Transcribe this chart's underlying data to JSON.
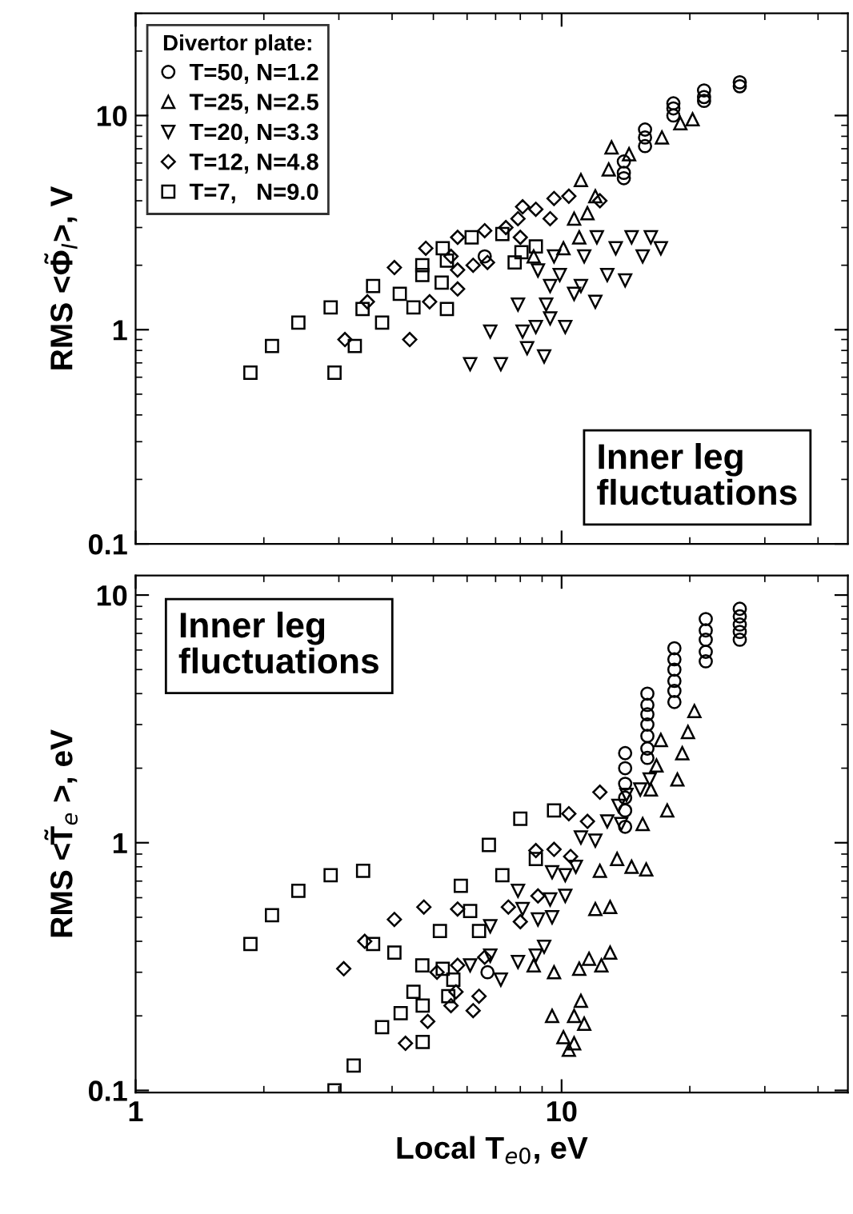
{
  "chart_data": [
    {
      "type": "scatter",
      "ylabel": "RMS <Φ̃$_{I}$>, V",
      "legend_title": "Divertor plate:",
      "legend": "top left",
      "log": "xy",
      "xlim": [
        1,
        47
      ],
      "xticks": [
        1,
        10
      ],
      "ylim": [
        0.1,
        30
      ],
      "yticks": [
        0.1,
        1,
        10
      ],
      "tick_labels": "y",
      "annotations": [
        "Inner leg\nfluctuations"
      ],
      "series": [
        {
          "name": "T=50, N=1.2",
          "color": "#000000",
          "marker": "circle",
          "x": [
            26.2,
            26.2,
            21.6,
            21.6,
            21.6,
            18.3,
            18.3,
            18.3,
            15.7,
            15.7,
            15.7,
            14.0,
            14.0,
            14.0,
            6.6
          ],
          "values": [
            14.3,
            13.7,
            13.1,
            12.2,
            11.7,
            11.4,
            10.8,
            10.0,
            8.6,
            7.9,
            7.2,
            6.1,
            5.4,
            5.1,
            2.2
          ]
        },
        {
          "name": "T=25, N=2.5",
          "color": "#000000",
          "marker": "triangle",
          "x": [
            20.3,
            19.0,
            17.2,
            13.1,
            14.4,
            12.9,
            11.1,
            12.0,
            11.5,
            10.7,
            11.0,
            10.1,
            8.6
          ],
          "values": [
            9.6,
            9.2,
            7.9,
            7.1,
            6.6,
            5.6,
            5.0,
            4.2,
            3.5,
            3.3,
            2.7,
            2.4,
            2.2
          ]
        },
        {
          "name": "T=20, N=3.3",
          "color": "#000000",
          "marker": "triangle_down",
          "x": [
            17.1,
            16.2,
            14.6,
            15.5,
            13.4,
            12.1,
            12.8,
            14.1,
            11.3,
            11.1,
            12.0,
            10.7,
            9.9,
            9.6,
            9.4,
            9.2,
            9.4,
            10.2,
            8.7,
            8.1,
            8.3,
            9.1,
            7.2,
            6.1,
            6.8,
            7.9,
            8.8
          ],
          "values": [
            2.4,
            2.7,
            2.7,
            2.2,
            2.4,
            2.7,
            1.8,
            1.7,
            2.2,
            1.6,
            1.35,
            1.47,
            1.8,
            2.2,
            1.6,
            1.31,
            1.13,
            1.03,
            1.03,
            0.98,
            0.82,
            0.75,
            0.69,
            0.69,
            0.98,
            1.31,
            1.89
          ]
        },
        {
          "name": "T=12, N=4.8",
          "color": "#000000",
          "marker": "diamond",
          "x": [
            9.6,
            10.4,
            12.3,
            8.7,
            8.1,
            9.4,
            7.9,
            7.4,
            8.0,
            6.6,
            5.7,
            4.8,
            5.5,
            6.7,
            6.2,
            5.7,
            4.05,
            5.7,
            4.9,
            3.5,
            3.1,
            4.4
          ],
          "values": [
            4.1,
            4.2,
            4.0,
            3.65,
            3.75,
            3.3,
            3.3,
            3.0,
            2.7,
            2.9,
            2.7,
            2.4,
            2.2,
            2.06,
            2.0,
            1.9,
            1.95,
            1.55,
            1.35,
            1.35,
            0.9,
            0.9
          ]
        },
        {
          "name": "T=7,   N=9.0",
          "color": "#000000",
          "marker": "square",
          "x": [
            1.86,
            2.09,
            2.41,
            2.87,
            2.93,
            3.27,
            3.61,
            3.41,
            3.79,
            4.17,
            4.49,
            4.71,
            4.71,
            5.23,
            5.38,
            5.26,
            5.38,
            6.15,
            7.26,
            7.76,
            8.05,
            8.7
          ],
          "values": [
            0.63,
            0.84,
            1.08,
            1.27,
            0.63,
            0.84,
            1.6,
            1.25,
            1.08,
            1.47,
            1.27,
            2.0,
            1.8,
            1.66,
            1.25,
            2.4,
            2.1,
            2.7,
            2.8,
            2.06,
            2.3,
            2.45
          ]
        }
      ]
    },
    {
      "type": "scatter",
      "xlabel": "Local T$_{e0}$, eV",
      "ylabel": "RMS <T̃$_{e}$ >, eV",
      "log": "xy",
      "xlim": [
        1,
        47
      ],
      "xticks": [
        1,
        10
      ],
      "ylim": [
        0.098,
        12
      ],
      "yticks": [
        0.1,
        1,
        10
      ],
      "annotations": [
        "Inner leg\nfluctuations"
      ],
      "series": [
        {
          "color": "#000000",
          "marker": "circle",
          "x": [
            26.2,
            26.2,
            26.2,
            26.2,
            26.2,
            21.8,
            21.8,
            21.8,
            21.8,
            21.8,
            18.4,
            18.4,
            18.4,
            18.4,
            18.4,
            18.4,
            15.9,
            15.9,
            15.9,
            15.9,
            15.9,
            15.9,
            15.9,
            14.1,
            14.1,
            14.1,
            14.1,
            14.1,
            14.1,
            6.7
          ],
          "values": [
            8.8,
            8.2,
            7.6,
            7.1,
            6.6,
            8.0,
            7.2,
            6.6,
            5.9,
            5.4,
            6.1,
            5.5,
            5.0,
            4.5,
            4.1,
            3.7,
            4.0,
            3.6,
            3.3,
            3.0,
            2.7,
            2.4,
            2.2,
            2.3,
            2.0,
            1.73,
            1.52,
            1.35,
            1.16,
            0.3
          ]
        },
        {
          "color": "#000000",
          "marker": "triangle",
          "x": [
            20.5,
            19.8,
            19.2,
            18.7,
            17.7,
            17.1,
            16.7,
            16.2,
            15.5,
            15.8,
            14.6,
            13.5,
            12.3,
            13.0,
            12.0,
            13.0,
            12.4,
            11.6,
            11.0,
            9.6,
            11.1,
            10.7,
            11.3,
            9.5,
            10.1,
            10.4,
            10.7,
            8.6
          ],
          "values": [
            3.4,
            2.8,
            2.3,
            1.8,
            1.35,
            2.6,
            2.05,
            1.64,
            1.19,
            0.78,
            0.8,
            0.86,
            0.77,
            0.55,
            0.54,
            0.36,
            0.32,
            0.34,
            0.31,
            0.3,
            0.23,
            0.2,
            0.186,
            0.2,
            0.164,
            0.146,
            0.155,
            0.32
          ]
        },
        {
          "color": "#000000",
          "marker": "triangle_down",
          "x": [
            16.1,
            15.3,
            14.2,
            13.6,
            12.8,
            13.8,
            11.1,
            12.0,
            10.8,
            10.2,
            9.5,
            10.2,
            9.4,
            9.5,
            8.8,
            9.1,
            8.7,
            7.9,
            8.1,
            6.8,
            7.2,
            7.9,
            6.1,
            6.8
          ],
          "values": [
            1.8,
            1.64,
            1.56,
            1.41,
            1.22,
            1.19,
            1.05,
            1.02,
            0.8,
            0.74,
            0.76,
            0.61,
            0.59,
            0.5,
            0.49,
            0.38,
            0.35,
            0.64,
            0.54,
            0.46,
            0.28,
            0.33,
            0.32,
            0.35
          ]
        },
        {
          "color": "#000000",
          "marker": "diamond",
          "x": [
            12.3,
            10.4,
            11.5,
            9.6,
            8.7,
            10.5,
            8.8,
            7.5,
            8.0,
            4.75,
            5.7,
            4.05,
            3.45,
            3.08,
            5.1,
            5.65,
            6.4,
            6.2,
            5.5,
            4.85,
            4.3,
            6.6,
            5.7
          ],
          "values": [
            1.6,
            1.31,
            1.22,
            0.94,
            0.93,
            0.88,
            0.61,
            0.55,
            0.48,
            0.55,
            0.54,
            0.49,
            0.4,
            0.31,
            0.3,
            0.25,
            0.24,
            0.21,
            0.22,
            0.19,
            0.155,
            0.345,
            0.32
          ]
        },
        {
          "color": "#000000",
          "marker": "square",
          "x": [
            1.86,
            2.09,
            2.41,
            2.87,
            3.42,
            3.61,
            4.05,
            4.71,
            4.49,
            4.72,
            4.19,
            3.79,
            4.72,
            3.25,
            2.93,
            5.18,
            5.42,
            5.57,
            5.26,
            5.8,
            6.1,
            6.4,
            6.75,
            7.26,
            8.0,
            9.6,
            8.7
          ],
          "values": [
            0.39,
            0.51,
            0.64,
            0.74,
            0.77,
            0.39,
            0.36,
            0.32,
            0.25,
            0.22,
            0.205,
            0.18,
            0.157,
            0.126,
            0.1,
            0.44,
            0.24,
            0.28,
            0.31,
            0.67,
            0.53,
            0.44,
            0.98,
            0.74,
            1.25,
            1.35,
            0.86
          ]
        }
      ]
    }
  ]
}
